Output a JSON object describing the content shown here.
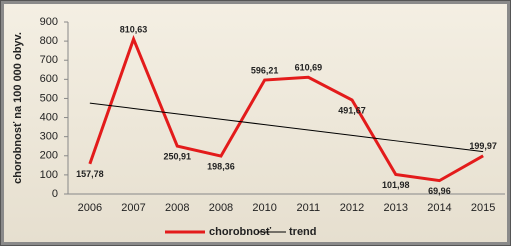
{
  "chart_data": {
    "type": "line",
    "y_label": "chorobnosť na 100 000 obyv.",
    "categories": [
      "2006",
      "2007",
      "2008",
      "2008",
      "2010",
      "2011",
      "2012",
      "2013",
      "2014",
      "2015"
    ],
    "series": [
      {
        "name": "chorobnosť",
        "color": "#e31b1b",
        "values": [
          157.78,
          810.63,
          250.91,
          198.36,
          596.21,
          610.69,
          491.67,
          101.98,
          69.96,
          199.97
        ],
        "value_labels": [
          "157,78",
          "810,63",
          "250,91",
          "198,36",
          "596,21",
          "610,69",
          "491,67",
          "101,98",
          "69,96",
          "199,97"
        ]
      },
      {
        "name": "trend",
        "color": "#000000",
        "values": [
          475.8,
          447.6,
          419.4,
          391.2,
          363.0,
          334.7,
          306.5,
          278.3,
          250.1,
          221.9
        ]
      }
    ],
    "ylim": [
      0,
      900
    ],
    "yticks": [
      0,
      100,
      200,
      300,
      400,
      500,
      600,
      700,
      800,
      900
    ]
  }
}
